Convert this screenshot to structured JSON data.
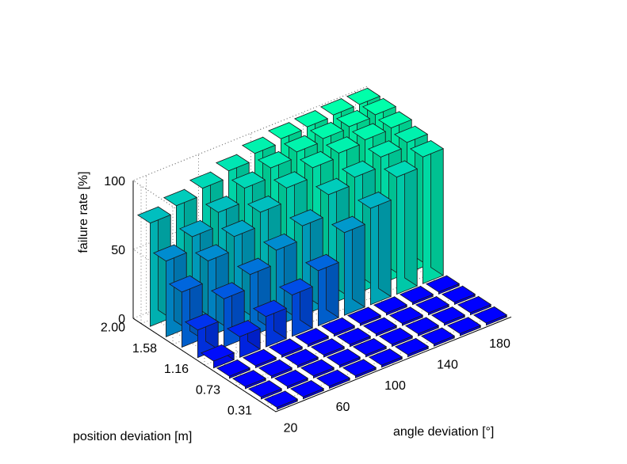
{
  "chart_data": {
    "type": "bar3d",
    "title": "",
    "zlabel": "failure rate [%]",
    "xlabel": "angle deviation [°]",
    "ylabel": "position deviation [m]",
    "zlim": [
      0,
      100
    ],
    "ztick_labels": [
      "0",
      "50",
      "100"
    ],
    "x_tick_labels": [
      "20",
      "60",
      "100",
      "140",
      "180"
    ],
    "y_tick_labels": [
      "0.31",
      "0.73",
      "1.16",
      "1.58",
      "2.00"
    ],
    "x_values": [
      20,
      40,
      60,
      80,
      100,
      120,
      140,
      160,
      180
    ],
    "y_values": [
      0.31,
      0.52,
      0.73,
      0.94,
      1.16,
      1.37,
      1.58,
      1.79,
      2.0
    ],
    "z": [
      [
        0,
        0,
        0,
        0,
        0,
        0,
        0,
        0,
        0
      ],
      [
        0,
        0,
        0,
        0,
        0,
        0,
        0,
        0,
        0
      ],
      [
        0,
        0,
        0,
        0,
        0,
        0,
        0,
        0,
        0
      ],
      [
        0,
        0,
        0,
        0,
        0,
        0,
        0,
        0,
        0
      ],
      [
        5,
        15,
        22,
        30,
        40,
        60,
        70,
        85,
        92
      ],
      [
        20,
        35,
        45,
        55,
        65,
        80,
        85,
        92,
        95
      ],
      [
        40,
        55,
        65,
        75,
        85,
        92,
        95,
        97,
        98
      ],
      [
        55,
        65,
        75,
        85,
        92,
        96,
        98,
        99,
        100
      ],
      [
        75,
        80,
        85,
        90,
        95,
        98,
        99,
        100,
        100
      ]
    ],
    "colormap": [
      "#0000ff",
      "#00ffaa"
    ],
    "grid": true
  }
}
